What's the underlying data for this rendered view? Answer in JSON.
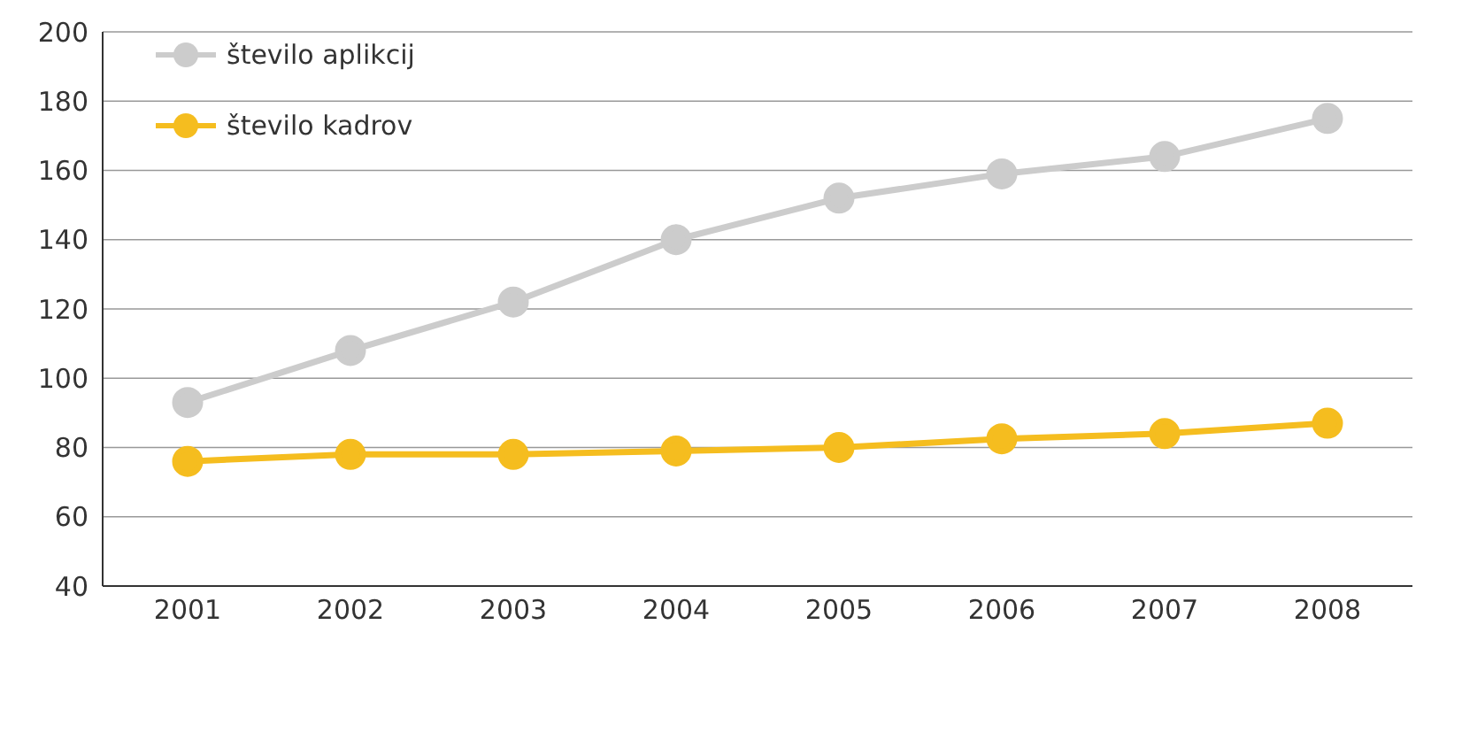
{
  "chart_data": {
    "type": "line",
    "categories": [
      "2001",
      "2002",
      "2003",
      "2004",
      "2005",
      "2006",
      "2007",
      "2008"
    ],
    "series": [
      {
        "name": "število aplikcij",
        "color": "#cccccc",
        "values": [
          93,
          108,
          122,
          140,
          152,
          159,
          164,
          175
        ]
      },
      {
        "name": "število kadrov",
        "color": "#f5bd1f",
        "values": [
          76,
          78,
          78,
          79,
          80,
          82.5,
          84,
          87
        ]
      }
    ],
    "ylim": [
      40,
      200
    ],
    "yticks": [
      40,
      60,
      80,
      100,
      120,
      140,
      160,
      180,
      200
    ],
    "grid": "y",
    "legend": "top left",
    "marker": "circle",
    "line_style": "solid"
  }
}
